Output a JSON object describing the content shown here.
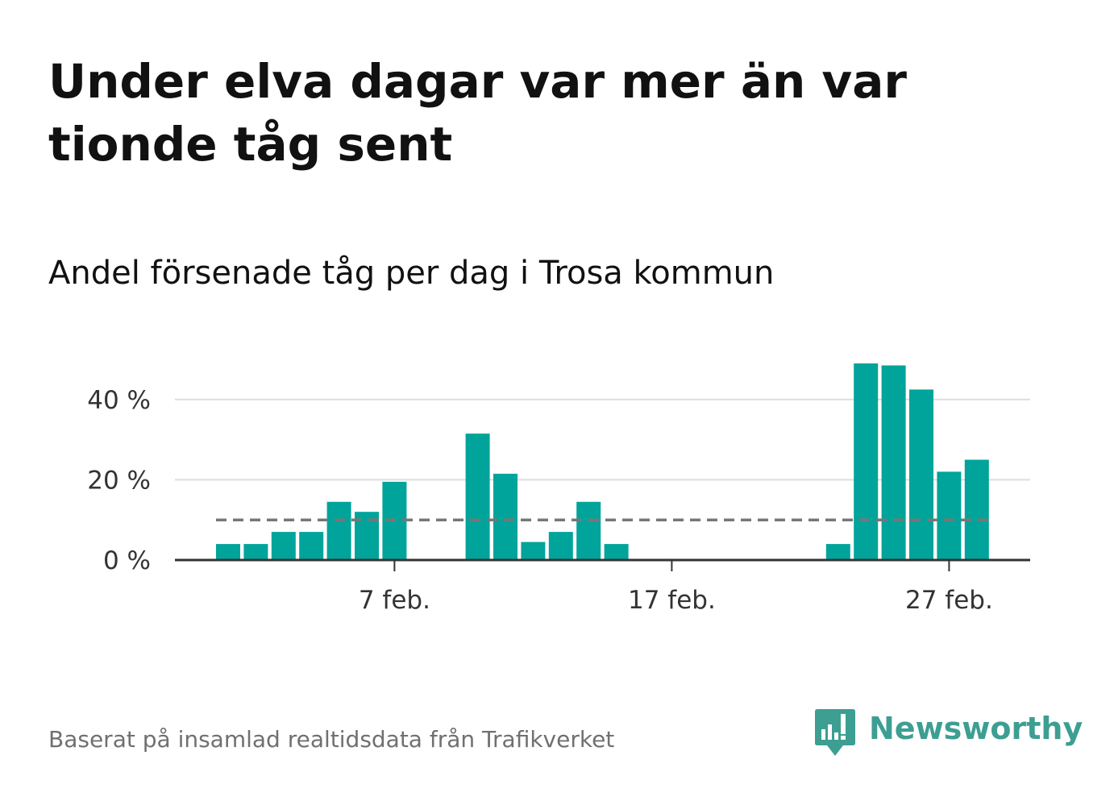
{
  "title": "Under elva dagar var mer än var tionde tåg sent",
  "subtitle": "Andel försenade tåg per dag i Trosa kommun",
  "source": "Baserat på insamlad realtidsdata från Trafikverket",
  "brand": {
    "name": "Newsworthy",
    "icon": "newsworthy-logo-icon",
    "color": "#3d9e92"
  },
  "colors": {
    "bar": "#00a49a",
    "gridline": "#dddddd",
    "axis": "#333333",
    "reference_line": "#777777"
  },
  "chart_data": {
    "type": "bar",
    "x": [
      "1 feb.",
      "2 feb.",
      "3 feb.",
      "4 feb.",
      "5 feb.",
      "6 feb.",
      "7 feb.",
      "8 feb.",
      "9 feb.",
      "10 feb.",
      "11 feb.",
      "12 feb.",
      "13 feb.",
      "14 feb.",
      "15 feb.",
      "16 feb.",
      "17 feb.",
      "18 feb.",
      "19 feb.",
      "20 feb.",
      "21 feb.",
      "22 feb.",
      "23 feb.",
      "24 feb.",
      "25 feb.",
      "26 feb.",
      "27 feb.",
      "28 feb."
    ],
    "values": [
      4,
      4,
      7,
      7,
      14.5,
      12,
      19.5,
      0,
      0,
      31.5,
      21.5,
      4.5,
      7,
      14.5,
      4,
      0,
      0,
      0,
      0,
      0,
      0,
      0,
      4,
      49,
      48.5,
      42.5,
      22,
      25
    ],
    "reference_line": 10,
    "xticks": [
      "7 feb.",
      "17 feb.",
      "27 feb."
    ],
    "yticks": [
      "0 %",
      "20 %",
      "40 %"
    ],
    "ytick_values": [
      0,
      20,
      40
    ],
    "ylim": [
      0,
      50
    ],
    "grid": true,
    "title": "Andel försenade tåg per dag i Trosa kommun",
    "xlabel": "",
    "ylabel": ""
  }
}
